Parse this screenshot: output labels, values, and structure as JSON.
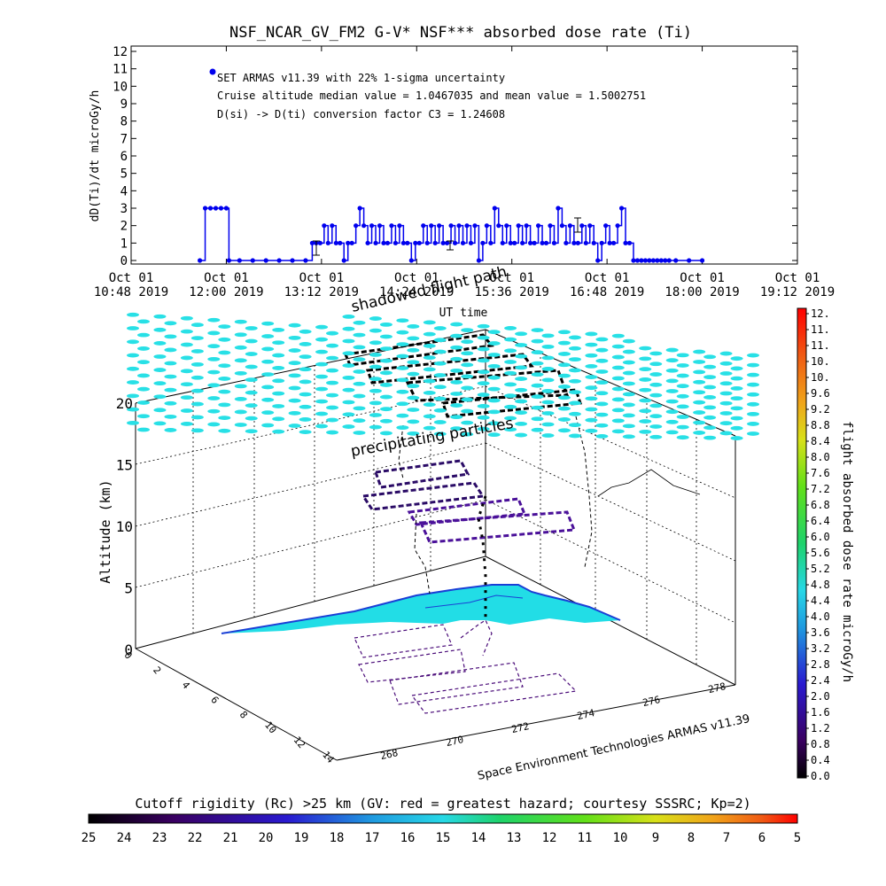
{
  "chart_data": [
    {
      "type": "line",
      "title": "NSF_NCAR_GV_FM2 G-V* NSF*** absorbed dose rate (Ti)",
      "ylabel": "dD(Ti)/dt microGy/h",
      "xlabel": "UT time",
      "ylim": [
        0,
        12
      ],
      "yticks": [
        "0",
        "1",
        "2",
        "3",
        "4",
        "5",
        "6",
        "7",
        "8",
        "9",
        "10",
        "11",
        "12"
      ],
      "xticks": [
        {
          "d": "Oct 01",
          "t": "10:48 2019"
        },
        {
          "d": "Oct 01",
          "t": "12:00 2019"
        },
        {
          "d": "Oct 01",
          "t": "13:12 2019"
        },
        {
          "d": "Oct 01",
          "t": "14:24 2019"
        },
        {
          "d": "Oct 01",
          "t": "15:36 2019"
        },
        {
          "d": "Oct 01",
          "t": "16:48 2019"
        },
        {
          "d": "Oct 01",
          "t": "18:00 2019"
        },
        {
          "d": "Oct 01",
          "t": "19:12 2019"
        }
      ],
      "annotations": [
        "SET ARMAS v11.39 with 22% 1-sigma uncertainty",
        "Cruise altitude median value = 1.0467035 and mean value = 1.5002751",
        "D(si) -> D(ti) conversion factor C3 = 1.24608"
      ],
      "series": [
        {
          "color": "#0000ee",
          "x": [
            "11:40",
            "11:44",
            "11:48",
            "11:52",
            "11:56",
            "12:00",
            "12:02",
            "12:10",
            "12:20",
            "12:30",
            "12:40",
            "12:50",
            "13:00",
            "13:05",
            "13:08",
            "13:11",
            "13:14",
            "13:17",
            "13:20",
            "13:23",
            "13:26",
            "13:29",
            "13:32",
            "13:35",
            "13:38",
            "13:41",
            "13:44",
            "13:47",
            "13:50",
            "13:53",
            "13:56",
            "13:59",
            "14:02",
            "14:05",
            "14:08",
            "14:11",
            "14:14",
            "14:17",
            "14:20",
            "14:23",
            "14:26",
            "14:29",
            "14:32",
            "14:35",
            "14:38",
            "14:41",
            "14:44",
            "14:47",
            "14:50",
            "14:53",
            "14:56",
            "14:59",
            "15:02",
            "15:05",
            "15:08",
            "15:11",
            "15:14",
            "15:17",
            "15:20",
            "15:23",
            "15:26",
            "15:29",
            "15:32",
            "15:35",
            "15:38",
            "15:41",
            "15:44",
            "15:47",
            "15:50",
            "15:53",
            "15:56",
            "15:59",
            "16:02",
            "16:05",
            "16:08",
            "16:11",
            "16:14",
            "16:17",
            "16:20",
            "16:23",
            "16:26",
            "16:29",
            "16:32",
            "16:35",
            "16:38",
            "16:41",
            "16:44",
            "16:47",
            "16:50",
            "16:53",
            "16:56",
            "16:59",
            "17:02",
            "17:05",
            "17:08",
            "17:11",
            "17:14",
            "17:17",
            "17:20",
            "17:23",
            "17:26",
            "17:29",
            "17:32",
            "17:35",
            "17:40",
            "17:50",
            "18:00"
          ],
          "y": [
            0,
            3,
            3,
            3,
            3,
            3,
            0,
            0,
            0,
            0,
            0,
            0,
            0,
            1,
            1,
            1,
            2,
            1,
            2,
            1,
            1,
            0,
            1,
            1,
            2,
            3,
            2,
            1,
            2,
            1,
            2,
            1,
            1,
            2,
            1,
            2,
            1,
            1,
            0,
            1,
            1,
            2,
            1,
            2,
            1,
            2,
            1,
            1,
            2,
            1,
            2,
            1,
            2,
            1,
            2,
            0,
            1,
            2,
            1,
            3,
            2,
            1,
            2,
            1,
            1,
            2,
            1,
            2,
            1,
            1,
            2,
            1,
            1,
            2,
            1,
            3,
            2,
            1,
            2,
            1,
            1,
            2,
            1,
            2,
            1,
            0,
            1,
            2,
            1,
            1,
            2,
            3,
            1,
            1,
            0,
            0,
            0,
            0,
            0,
            0,
            0,
            0,
            0,
            0,
            0,
            0,
            0
          ]
        }
      ]
    },
    {
      "type": "scatter",
      "zlabel": "Altitude (km)",
      "zticks": [
        "0",
        "5",
        "10",
        "15",
        "20"
      ],
      "yaxis_ticks": [
        "0",
        "2",
        "4",
        "6",
        "8",
        "10",
        "12",
        "14"
      ],
      "xaxis_ticks": [
        "268",
        "270",
        "272",
        "274",
        "276",
        "278"
      ],
      "colorbar_label": "flight absorbed dose rate microGy/h",
      "colorbar_ticks": [
        "12.",
        "11.",
        "11.",
        "10.",
        "10.",
        "9.6",
        "9.2",
        "8.8",
        "8.4",
        "8.0",
        "7.6",
        "7.2",
        "6.8",
        "6.4",
        "6.0",
        "5.6",
        "5.2",
        "4.8",
        "4.4",
        "4.0",
        "3.6",
        "3.2",
        "2.8",
        "2.4",
        "2.0",
        "1.6",
        "1.2",
        "0.8",
        "0.4",
        "0.0"
      ],
      "labels": [
        "shadowed flight path",
        "precipitating particles"
      ],
      "credit": "Space Environment Technologies ARMAS v11.39"
    },
    {
      "type": "heatmap",
      "title": "Cutoff rigidity (Rc) >25 km (GV: red = greatest hazard; courtesy SSSRC; Kp=2)",
      "ticks": [
        "25",
        "24",
        "23",
        "22",
        "21",
        "20",
        "19",
        "18",
        "17",
        "16",
        "15",
        "14",
        "13",
        "12",
        "11",
        "10",
        "9",
        "8",
        "7",
        "6",
        "5"
      ]
    }
  ]
}
